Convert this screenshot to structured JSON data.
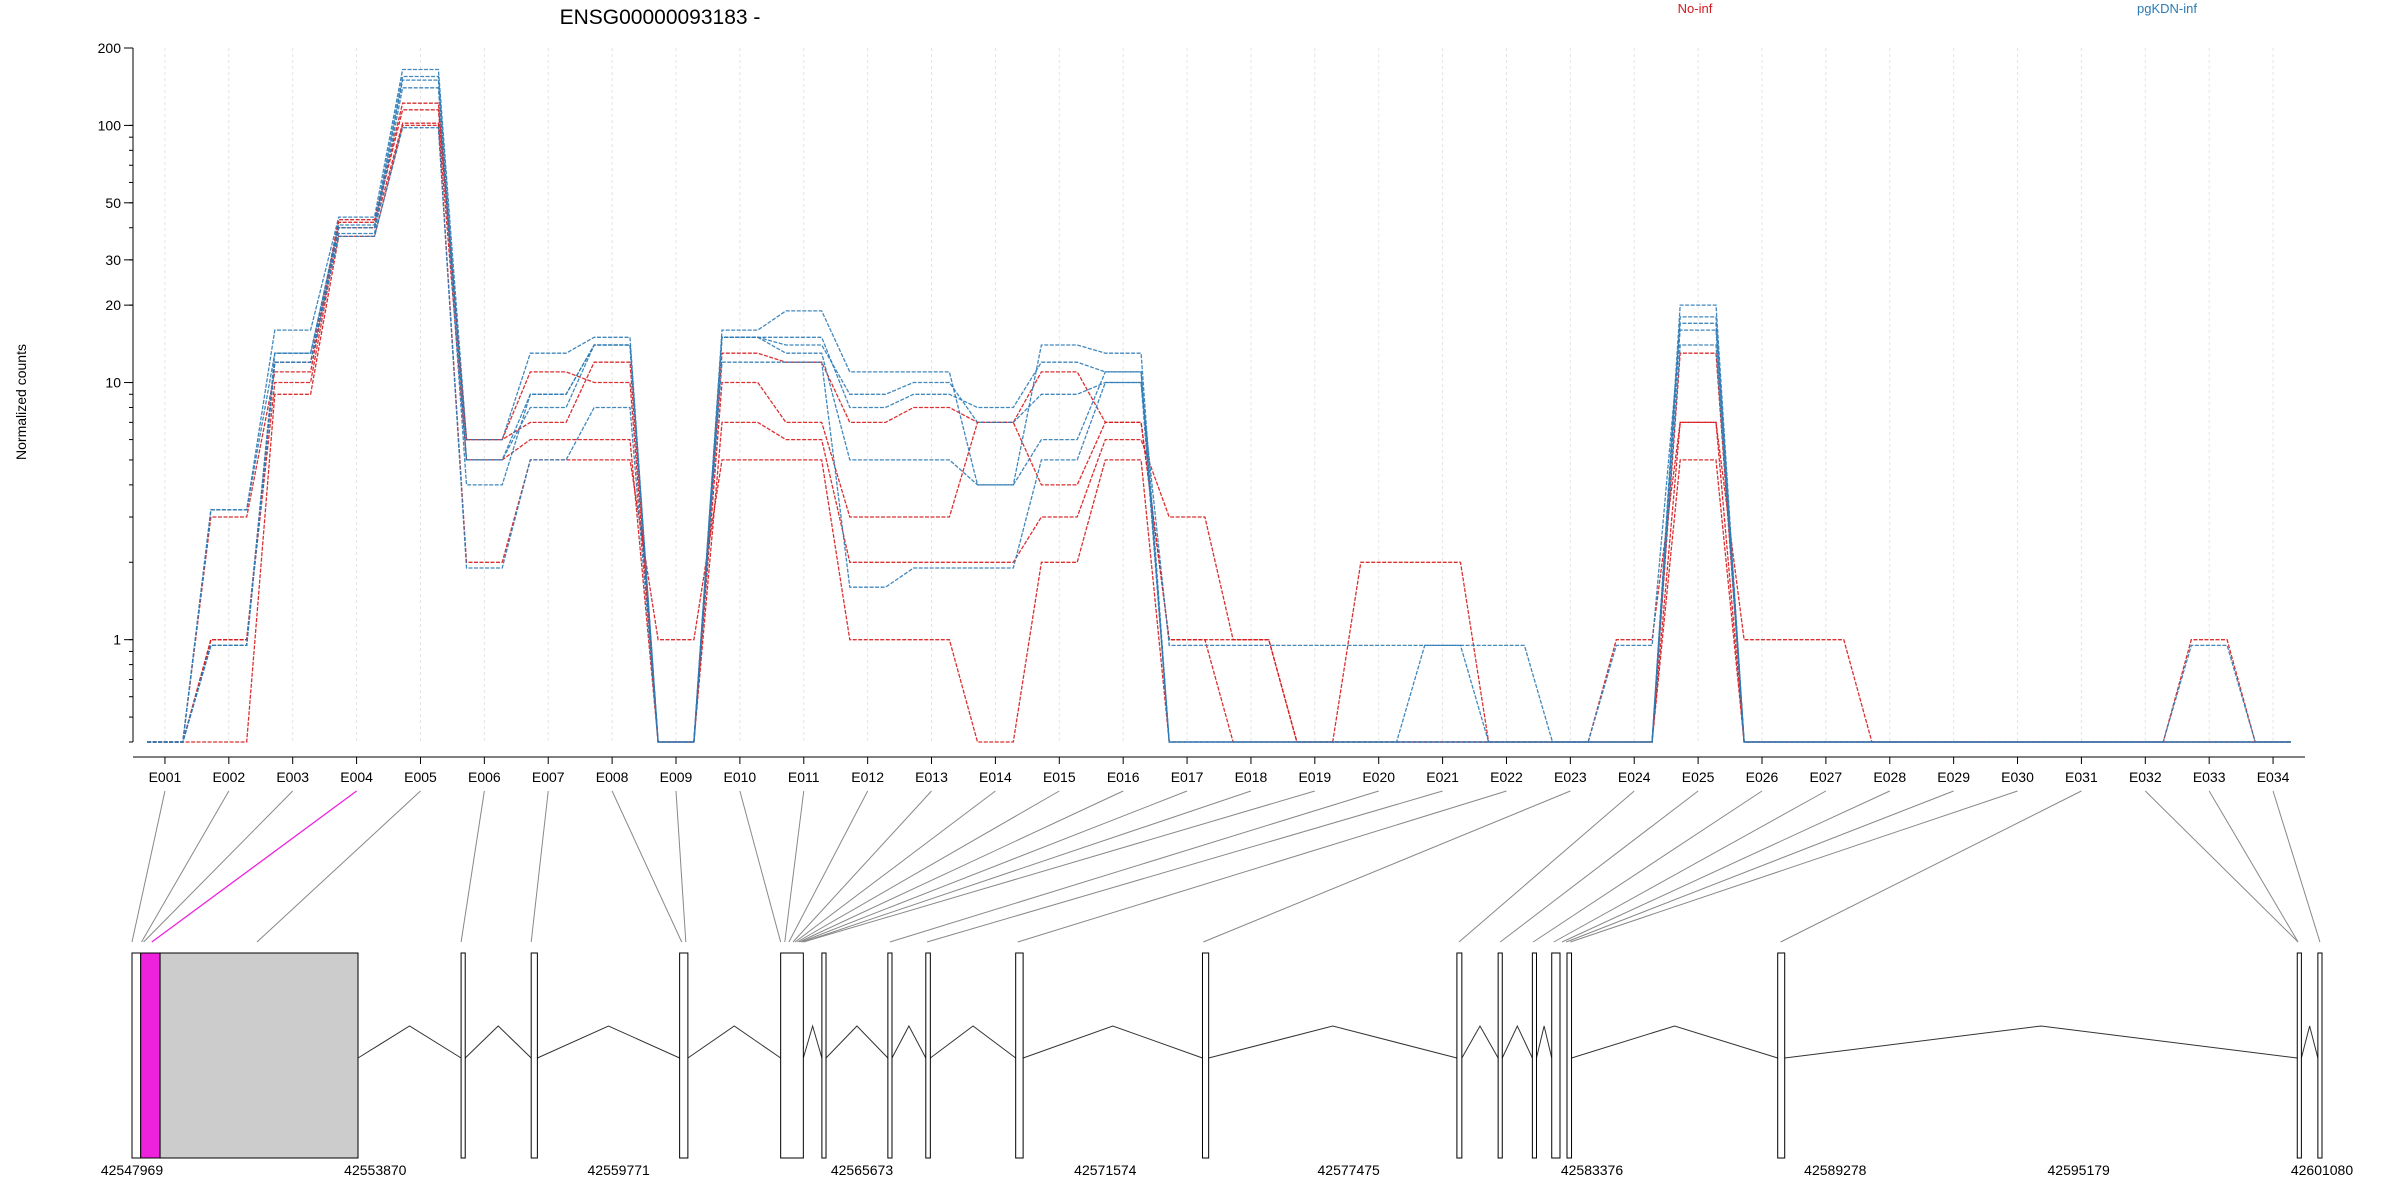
{
  "chart_data": {
    "type": "line",
    "title": "ENSG00000093183 -",
    "ylabel": "Normalized counts",
    "yscale": "log",
    "ylim": [
      0.4,
      200
    ],
    "yticks": [
      1,
      10,
      20,
      30,
      50,
      100,
      200
    ],
    "zero_value": 0.4,
    "grid": true,
    "legend_position": "top",
    "categories": [
      "E001",
      "E002",
      "E003",
      "E004",
      "E005",
      "E006",
      "E007",
      "E008",
      "E009",
      "E010",
      "E011",
      "E012",
      "E013",
      "E014",
      "E015",
      "E016",
      "E017",
      "E018",
      "E019",
      "E020",
      "E021",
      "E022",
      "E023",
      "E024",
      "E025",
      "E026",
      "E027",
      "E028",
      "E029",
      "E030",
      "E031",
      "E032",
      "E033",
      "E034"
    ],
    "groups": [
      {
        "name": "No-inf",
        "color": "#d7191c"
      },
      {
        "name": "pgKDN-inf",
        "color": "#2c7bb6"
      }
    ],
    "series": [
      {
        "group": 0,
        "values": [
          0.4,
          0.4,
          9,
          37,
          100,
          2,
          5,
          5,
          1,
          5,
          5,
          1,
          1,
          0.4,
          2,
          5,
          0.4,
          0.4,
          0.4,
          2,
          2,
          0.4,
          0.4,
          0.4,
          5,
          0.4,
          0.4,
          0.4,
          0.4,
          0.4,
          0.4,
          0.4,
          0.4,
          0.4
        ]
      },
      {
        "group": 0,
        "values": [
          0.4,
          1,
          10,
          40,
          102,
          5,
          6,
          6,
          0.4,
          7,
          6,
          2,
          2,
          2,
          3,
          6,
          3,
          1,
          0.4,
          0.4,
          0.4,
          0.4,
          0.4,
          1,
          7,
          1,
          1,
          0.4,
          0.4,
          0.4,
          0.4,
          0.4,
          1,
          0.4
        ]
      },
      {
        "group": 0,
        "values": [
          0.4,
          3,
          11,
          42,
          115,
          6,
          11,
          10,
          0.4,
          10,
          7,
          3,
          3,
          7,
          4,
          7,
          1,
          0.4,
          0.4,
          0.4,
          0.4,
          0.4,
          0.4,
          0.4,
          13,
          0.4,
          0.4,
          0.4,
          0.4,
          0.4,
          0.4,
          0.4,
          0.4,
          0.4
        ]
      },
      {
        "group": 0,
        "values": [
          0.4,
          1,
          12,
          43,
          122,
          6,
          7,
          12,
          0.4,
          13,
          12,
          7,
          8,
          7,
          11,
          7,
          1,
          1,
          0.4,
          0.4,
          0.4,
          0.4,
          0.4,
          0.4,
          7,
          0.4,
          0.4,
          0.4,
          0.4,
          0.4,
          0.4,
          0.4,
          0.4,
          0.4
        ]
      },
      {
        "group": 1,
        "values": [
          0.4,
          0.95,
          12,
          37,
          98,
          1.9,
          5,
          8,
          0.4,
          12,
          12,
          1.6,
          1.9,
          1.9,
          5,
          10,
          0.95,
          0.95,
          0.95,
          0.95,
          0.95,
          0.4,
          0.4,
          0.95,
          16,
          0.4,
          0.4,
          0.4,
          0.4,
          0.4,
          0.4,
          0.4,
          0.95,
          0.4
        ]
      },
      {
        "group": 1,
        "values": [
          0.4,
          0.95,
          12,
          38,
          140,
          4,
          9,
          14,
          0.4,
          15,
          13,
          5,
          5,
          4,
          6,
          11,
          0.4,
          0.4,
          0.4,
          0.4,
          0.4,
          0.4,
          0.4,
          0.4,
          17,
          0.4,
          0.4,
          0.4,
          0.4,
          0.4,
          0.4,
          0.4,
          0.4,
          0.4
        ]
      },
      {
        "group": 1,
        "values": [
          0.4,
          0.95,
          13,
          40,
          150,
          5,
          8,
          14,
          0.4,
          15,
          14,
          9,
          10,
          7,
          9,
          10,
          0.4,
          0.4,
          0.4,
          0.4,
          0.4,
          0.4,
          0.4,
          0.4,
          14,
          0.4,
          0.4,
          0.4,
          0.4,
          0.4,
          0.4,
          0.4,
          0.4,
          0.4
        ]
      },
      {
        "group": 1,
        "values": [
          0.4,
          3.2,
          13,
          41,
          155,
          5,
          9,
          14,
          0.4,
          15,
          15,
          8,
          9,
          8,
          12,
          11,
          0.4,
          0.4,
          0.4,
          0.4,
          0.95,
          0.95,
          0.4,
          0.4,
          18,
          0.4,
          0.4,
          0.4,
          0.4,
          0.4,
          0.4,
          0.4,
          0.4,
          0.4
        ]
      },
      {
        "group": 1,
        "values": [
          0.4,
          3.2,
          16,
          44,
          165,
          6,
          13,
          15,
          0.4,
          16,
          19,
          11,
          11,
          4,
          14,
          13,
          0.4,
          0.4,
          0.4,
          0.4,
          0.4,
          0.4,
          0.4,
          0.4,
          20,
          0.4,
          0.4,
          0.4,
          0.4,
          0.4,
          0.4,
          0.4,
          0.4,
          0.4
        ]
      }
    ],
    "gene_model": {
      "coordinates": [
        "42547969",
        "42553870",
        "42559771",
        "42565673",
        "42571574",
        "42577475",
        "42583376",
        "42589278",
        "42595179",
        "42601080"
      ],
      "coord_min": 42547969,
      "coord_max": 42601080,
      "highlight_color": "#ee22dd",
      "exons": [
        {
          "start": 42547969,
          "end": 42548180
        },
        {
          "start": 42548180,
          "end": 42548650,
          "highlight": true
        },
        {
          "start": 42548650,
          "end": 42553450,
          "filled": true
        },
        {
          "start": 42555950,
          "end": 42556050
        },
        {
          "start": 42557650,
          "end": 42557800
        },
        {
          "start": 42561250,
          "end": 42561450
        },
        {
          "start": 42563700,
          "end": 42564250
        },
        {
          "start": 42564700,
          "end": 42564800
        },
        {
          "start": 42566300,
          "end": 42566400
        },
        {
          "start": 42567220,
          "end": 42567330
        },
        {
          "start": 42569400,
          "end": 42569580
        },
        {
          "start": 42573930,
          "end": 42574080
        },
        {
          "start": 42580100,
          "end": 42580220
        },
        {
          "start": 42581100,
          "end": 42581200
        },
        {
          "start": 42581930,
          "end": 42582030
        },
        {
          "start": 42582400,
          "end": 42582600
        },
        {
          "start": 42582770,
          "end": 42582880
        },
        {
          "start": 42587880,
          "end": 42588050
        },
        {
          "start": 42600480,
          "end": 42600580
        },
        {
          "start": 42600980,
          "end": 42601080
        }
      ],
      "exon_links": [
        42547969,
        42548200,
        42548250,
        42548450,
        42551000,
        42555950,
        42557650,
        42561300,
        42561400,
        42563700,
        42563800,
        42563900,
        42564000,
        42564050,
        42564100,
        42564150,
        42564200,
        42564250,
        42564250,
        42566350,
        42567250,
        42569450,
        42573950,
        42580150,
        42581150,
        42581950,
        42582450,
        42582650,
        42582750,
        42582850,
        42587950,
        42600500,
        42600500,
        42601030
      ]
    }
  }
}
